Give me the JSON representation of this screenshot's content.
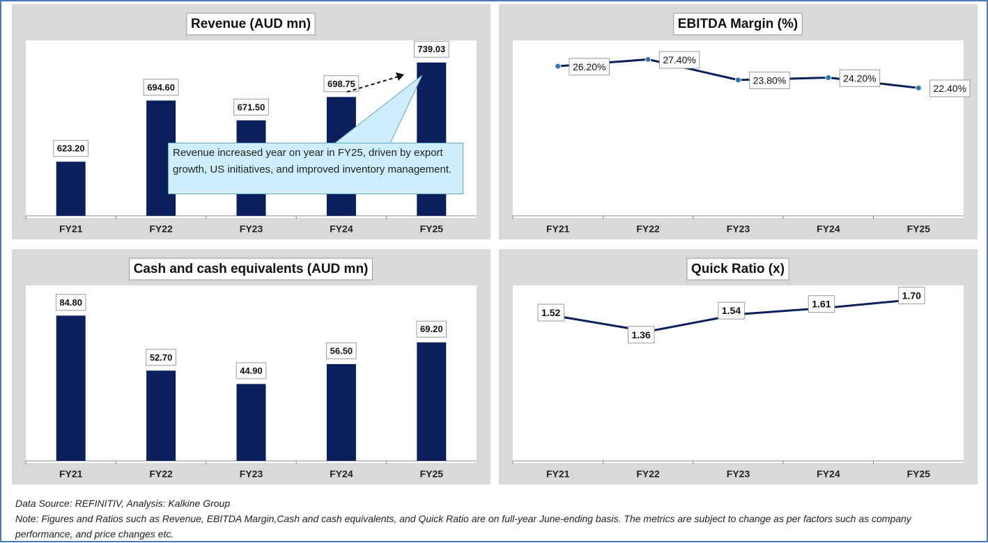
{
  "chart_data": [
    {
      "type": "bar",
      "title": "Revenue (AUD mn)",
      "categories": [
        "FY21",
        "FY22",
        "FY23",
        "FY24",
        "FY25"
      ],
      "values": [
        623.2,
        694.6,
        671.5,
        698.75,
        739.03
      ],
      "value_labels": [
        "623.20",
        "694.60",
        "671.50",
        "698.75",
        "739.03"
      ],
      "color": "#0b1f5c",
      "ylim": [
        560,
        760
      ],
      "annotation": "Revenue increased year on year in FY25, driven by export growth, US initiatives, and improved inventory management."
    },
    {
      "type": "line",
      "title": "EBITDA Margin (%)",
      "categories": [
        "FY21",
        "FY22",
        "FY23",
        "FY24",
        "FY25"
      ],
      "values": [
        26.2,
        27.4,
        23.8,
        24.2,
        22.4
      ],
      "value_labels": [
        "26.20%",
        "27.40%",
        "23.80%",
        "24.20%",
        "22.40%"
      ],
      "color": "#0b1f5c",
      "ylim": [
        0,
        30
      ]
    },
    {
      "type": "bar",
      "title": "Cash and cash equivalents (AUD mn)",
      "categories": [
        "FY21",
        "FY22",
        "FY23",
        "FY24",
        "FY25"
      ],
      "values": [
        84.8,
        52.7,
        44.9,
        56.5,
        69.2
      ],
      "value_labels": [
        "84.80",
        "52.70",
        "44.90",
        "56.50",
        "69.20"
      ],
      "color": "#0b1f5c",
      "ylim": [
        0,
        100
      ]
    },
    {
      "type": "line",
      "title": "Quick Ratio (x)",
      "categories": [
        "FY21",
        "FY22",
        "FY23",
        "FY24",
        "FY25"
      ],
      "values": [
        1.52,
        1.36,
        1.54,
        1.61,
        1.7
      ],
      "value_labels": [
        "1.52",
        "1.36",
        "1.54",
        "1.61",
        "1.70"
      ],
      "color": "#0b1f5c",
      "ylim": [
        0,
        1.8
      ]
    }
  ],
  "source": "Data Source: REFINITIV, Analysis: Kalkine Group",
  "note": "Note: Figures and Ratios such as  Revenue, EBITDA Margin,Cash and cash equivalents, and Quick Ratio are on full-year June-ending basis. The metrics are subject to change as per factors such as company performance, and price changes etc."
}
